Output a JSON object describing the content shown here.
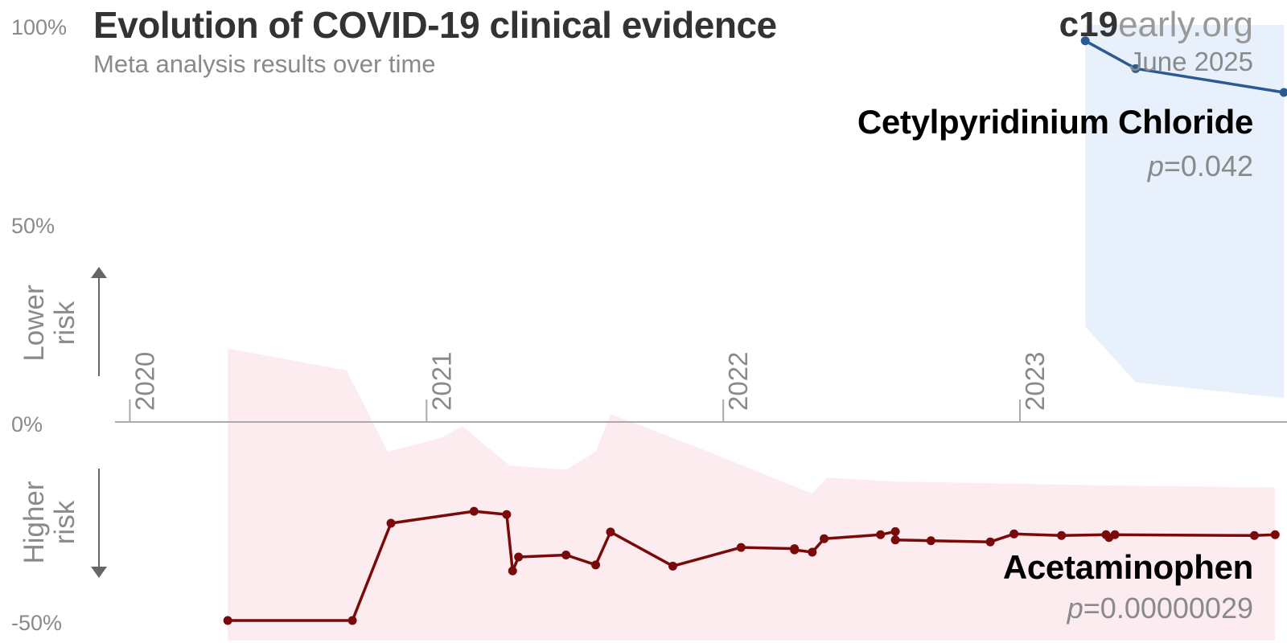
{
  "header": {
    "title": "Evolution of COVID-19 clinical evidence",
    "subtitle": "Meta analysis results over time",
    "brand_bold": "c19",
    "brand_rest": "early.org",
    "date": "June 2025"
  },
  "colors": {
    "blue_line": "#2b5a93",
    "blue_band": "#e8f0fb",
    "red_line": "#7a0a0a",
    "red_band": "#fcecef",
    "axis": "#aaaaaa",
    "tick_text": "#8a8a8a",
    "arrow": "#666666"
  },
  "chart_data": {
    "type": "line",
    "title": "Evolution of COVID-19 clinical evidence",
    "subtitle": "Meta analysis results over time",
    "xlim": [
      2019.95,
      2023.9
    ],
    "ylim": [
      -50,
      100
    ],
    "y_ticks": [
      {
        "value": 100,
        "label": "100%"
      },
      {
        "value": 50,
        "label": "50%"
      },
      {
        "value": 0,
        "label": "0%"
      },
      {
        "value": -50,
        "label": "-50%"
      }
    ],
    "x_ticks": [
      {
        "value": 2020,
        "label": "2020"
      },
      {
        "value": 2021,
        "label": "2021"
      },
      {
        "value": 2022,
        "label": "2022"
      },
      {
        "value": 2023,
        "label": "2023"
      }
    ],
    "direction_labels": {
      "lower": [
        "Lower",
        "risk"
      ],
      "higher": [
        "Higher",
        "risk"
      ]
    },
    "series": [
      {
        "name": "Cetylpyridinium Chloride",
        "pvalue_prefix": "p",
        "pvalue_text": "=0.042",
        "color": "#2b5a93",
        "band_color": "#e8f0fb",
        "x": [
          2023.22,
          2023.39,
          2023.89
        ],
        "y": [
          96,
          89,
          83
        ],
        "band": [
          {
            "x": 2023.22,
            "lo": 24,
            "hi": 100
          },
          {
            "x": 2023.39,
            "lo": 10,
            "hi": 100
          },
          {
            "x": 2023.89,
            "lo": 6,
            "hi": 100
          }
        ]
      },
      {
        "name": "Acetaminophen",
        "pvalue_prefix": "p",
        "pvalue_text": "=0.00000029",
        "color": "#7a0a0a",
        "band_color": "#fcecef",
        "x": [
          2020.33,
          2020.75,
          2020.88,
          2021.16,
          2021.27,
          2021.29,
          2021.31,
          2021.47,
          2021.57,
          2021.62,
          2021.83,
          2022.06,
          2022.24,
          2022.24,
          2022.3,
          2022.34,
          2022.53,
          2022.58,
          2022.58,
          2022.7,
          2022.9,
          2022.98,
          2023.14,
          2023.29,
          2023.3,
          2023.32,
          2023.79,
          2023.86
        ],
        "y": [
          -50,
          -50,
          -25.5,
          -22.5,
          -23.3,
          -37.5,
          -34,
          -33.5,
          -36,
          -27.7,
          -36.3,
          -31.6,
          -31.9,
          -32.2,
          -32.8,
          -29.4,
          -28.4,
          -27.6,
          -29.7,
          -29.9,
          -30.2,
          -28.2,
          -28.6,
          -28.4,
          -29.1,
          -28.4,
          -28.6,
          -28.4
        ],
        "band": [
          {
            "x": 2020.33,
            "lo": -55,
            "hi": 18.5
          },
          {
            "x": 2020.73,
            "lo": -55,
            "hi": 13
          },
          {
            "x": 2020.87,
            "lo": -55,
            "hi": -7.5
          },
          {
            "x": 2021.05,
            "lo": -55,
            "hi": -4
          },
          {
            "x": 2021.12,
            "lo": -55,
            "hi": -1
          },
          {
            "x": 2021.28,
            "lo": -55,
            "hi": -11
          },
          {
            "x": 2021.47,
            "lo": -55,
            "hi": -12
          },
          {
            "x": 2021.57,
            "lo": -55,
            "hi": -7.5
          },
          {
            "x": 2021.62,
            "lo": -55,
            "hi": 2
          },
          {
            "x": 2021.9,
            "lo": -55,
            "hi": -6
          },
          {
            "x": 2022.2,
            "lo": -55,
            "hi": -15
          },
          {
            "x": 2022.3,
            "lo": -55,
            "hi": -18
          },
          {
            "x": 2022.35,
            "lo": -55,
            "hi": -14
          },
          {
            "x": 2022.58,
            "lo": -55,
            "hi": -15
          },
          {
            "x": 2023.3,
            "lo": -55,
            "hi": -16
          },
          {
            "x": 2023.86,
            "lo": -55,
            "hi": -16.5
          }
        ]
      }
    ]
  }
}
